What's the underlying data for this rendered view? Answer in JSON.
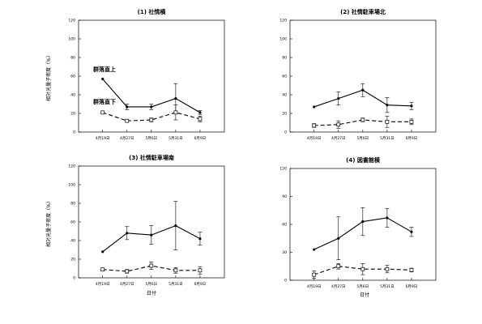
{
  "figure": {
    "ylabel": "相対光量子密度（%）",
    "xlabel": "日付"
  },
  "chart_data": [
    {
      "type": "line",
      "title": "(1) 社情横",
      "categories": [
        "4月19日",
        "4月27日",
        "5月6日",
        "5月31日",
        "6月9日"
      ],
      "ylim": [
        0,
        120
      ],
      "yticks": [
        0,
        20,
        40,
        60,
        80,
        100,
        120
      ],
      "grid": false,
      "series": [
        {
          "name": "群落直上",
          "style": "solid",
          "marker": "filled-circle",
          "color": "#000000",
          "values": [
            57,
            27,
            27,
            36,
            21
          ],
          "errors": [
            0,
            3,
            3,
            16,
            2
          ]
        },
        {
          "name": "群落直下",
          "style": "dashed",
          "marker": "open-square",
          "color": "#000000",
          "values": [
            21,
            12,
            13,
            21,
            14
          ],
          "errors": [
            0,
            1,
            2,
            8,
            3
          ]
        }
      ],
      "annotations": [
        "群落直上",
        "群落直下"
      ]
    },
    {
      "type": "line",
      "title": "(2) 社情駐車場北",
      "categories": [
        "4月19日",
        "4月27日",
        "5月6日",
        "5月31日",
        "6月9日"
      ],
      "ylim": [
        0,
        120
      ],
      "yticks": [
        0,
        20,
        40,
        60,
        80,
        100,
        120
      ],
      "grid": false,
      "series": [
        {
          "style": "solid",
          "marker": "filled-circle",
          "color": "#000000",
          "values": [
            27,
            36,
            45,
            29,
            28
          ],
          "errors": [
            0,
            7,
            7,
            8,
            4
          ]
        },
        {
          "style": "dashed",
          "marker": "open-square",
          "color": "#000000",
          "values": [
            7,
            8,
            13,
            11,
            11
          ],
          "errors": [
            2,
            4,
            2,
            6,
            3
          ]
        }
      ]
    },
    {
      "type": "line",
      "title": "(3) 社情駐車場南",
      "categories": [
        "4月19日",
        "4月27日",
        "5月6日",
        "5月31日",
        "6月9日"
      ],
      "ylim": [
        0,
        120
      ],
      "yticks": [
        0,
        20,
        40,
        60,
        80,
        100,
        120
      ],
      "grid": false,
      "series": [
        {
          "style": "solid",
          "marker": "filled-circle",
          "color": "#000000",
          "values": [
            28,
            48,
            46,
            56,
            42
          ],
          "errors": [
            0,
            7,
            10,
            26,
            7
          ]
        },
        {
          "style": "dashed",
          "marker": "open-square",
          "color": "#000000",
          "values": [
            9,
            7,
            13,
            8,
            8
          ],
          "errors": [
            0,
            2,
            4,
            3,
            4
          ]
        }
      ]
    },
    {
      "type": "line",
      "title": "(4) 図書館横",
      "categories": [
        "4月19日",
        "4月27日",
        "5月6日",
        "5月31日",
        "6月9日"
      ],
      "ylim": [
        0,
        120
      ],
      "yticks": [
        0,
        30,
        60,
        90,
        120
      ],
      "grid": false,
      "series": [
        {
          "style": "solid",
          "marker": "filled-circle",
          "color": "#000000",
          "values": [
            33,
            45,
            63,
            67,
            52
          ],
          "errors": [
            0,
            23,
            15,
            10,
            5
          ]
        },
        {
          "style": "dashed",
          "marker": "open-square",
          "color": "#000000",
          "values": [
            6,
            15,
            12,
            12,
            11
          ],
          "errors": [
            4,
            3,
            6,
            4,
            2
          ]
        }
      ]
    }
  ]
}
